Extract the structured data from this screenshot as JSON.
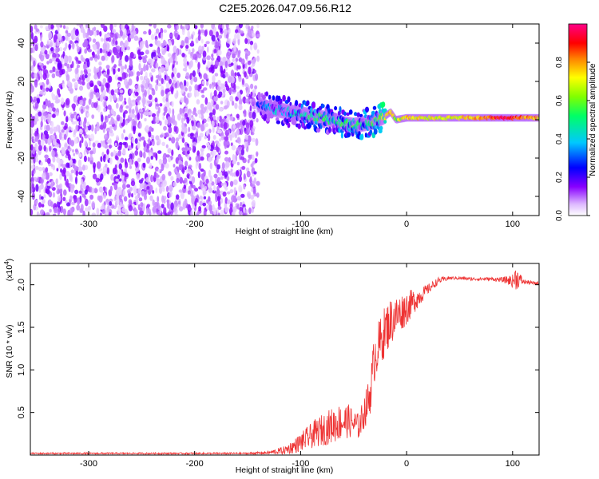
{
  "title": "C2E5.2026.047.09.56.R12",
  "colorbar": {
    "label": "Normalized spectral amplitude",
    "ticks": [
      "0.0",
      "0.2",
      "0.4",
      "0.6",
      "0.8"
    ],
    "tick_values": [
      0.0,
      0.2,
      0.4,
      0.6,
      0.8
    ],
    "range": [
      0,
      1
    ],
    "colormap": [
      "#ffffff",
      "#8800ff",
      "#0000ff",
      "#00e0ff",
      "#00ff00",
      "#ffff00",
      "#ff8000",
      "#ff0000",
      "#ff0080"
    ]
  },
  "chart_data": [
    {
      "type": "heatmap",
      "name": "spectrogram",
      "xlabel": "Height of straight line (km)",
      "ylabel": "Frequency (Hz)",
      "xlim": [
        -355,
        125
      ],
      "ylim": [
        -50,
        50
      ],
      "xticks": [
        -300,
        -200,
        -100,
        0,
        100
      ],
      "xtick_labels": [
        "-300",
        "-200",
        "-100",
        "0",
        "100"
      ],
      "yticks": [
        -40,
        -20,
        0,
        20,
        40
      ],
      "ytick_labels": [
        "-40",
        "-20",
        "0",
        "20",
        "40"
      ],
      "noise_region_x": [
        -355,
        -140
      ],
      "signal_trace": {
        "x": [
          -140,
          -130,
          -120,
          -110,
          -100,
          -90,
          -80,
          -70,
          -60,
          -50,
          -40,
          -30,
          -20,
          -15,
          -10,
          0,
          20,
          40,
          60,
          80,
          90,
          100,
          110,
          125
        ],
        "freq_hz": [
          8,
          6,
          5,
          4,
          3,
          2,
          1,
          0,
          -2,
          -3,
          -2,
          -1,
          2,
          4,
          0,
          1,
          1,
          1,
          1,
          1,
          1,
          1,
          1,
          1
        ],
        "amplitude": [
          0.3,
          0.35,
          0.4,
          0.4,
          0.45,
          0.5,
          0.5,
          0.45,
          0.5,
          0.55,
          0.5,
          0.55,
          0.7,
          0.8,
          0.6,
          0.75,
          0.7,
          0.7,
          0.75,
          0.85,
          0.95,
          0.9,
          0.8,
          0.75
        ]
      }
    },
    {
      "type": "line",
      "name": "snr",
      "xlabel": "Height of straight line (km)",
      "ylabel": "SNR (10 * v/v)",
      "y_scale_label": "(x10",
      "y_scale_exponent": "4",
      "y_scale_suffix": ")",
      "xlim": [
        -355,
        125
      ],
      "ylim": [
        0,
        2.25
      ],
      "xticks": [
        -300,
        -200,
        -100,
        0,
        100
      ],
      "xtick_labels": [
        "-300",
        "-200",
        "-100",
        "0",
        "100"
      ],
      "yticks": [
        0.5,
        1.0,
        1.5,
        2.0
      ],
      "ytick_labels": [
        "0.5",
        "1.0",
        "1.5",
        "2.0"
      ],
      "color": "#ee3333",
      "series": [
        {
          "name": "SNR",
          "x": [
            -355,
            -300,
            -250,
            -200,
            -150,
            -130,
            -115,
            -105,
            -95,
            -85,
            -75,
            -65,
            -55,
            -45,
            -35,
            -30,
            -25,
            -20,
            -15,
            -10,
            -5,
            0,
            10,
            20,
            30,
            40,
            50,
            60,
            70,
            80,
            90,
            95,
            100,
            103,
            110,
            120,
            125
          ],
          "y": [
            0.02,
            0.02,
            0.02,
            0.02,
            0.02,
            0.03,
            0.06,
            0.12,
            0.2,
            0.28,
            0.34,
            0.4,
            0.42,
            0.35,
            0.7,
            1.2,
            1.35,
            1.5,
            1.6,
            1.65,
            1.7,
            1.75,
            1.85,
            1.95,
            2.05,
            2.08,
            2.08,
            2.07,
            2.07,
            2.07,
            2.06,
            2.06,
            2.05,
            2.1,
            2.04,
            2.02,
            2.02
          ],
          "noise": [
            0.01,
            0.01,
            0.01,
            0.01,
            0.01,
            0.02,
            0.05,
            0.09,
            0.13,
            0.17,
            0.2,
            0.22,
            0.2,
            0.15,
            0.25,
            0.3,
            0.3,
            0.3,
            0.28,
            0.25,
            0.22,
            0.2,
            0.12,
            0.06,
            0.04,
            0.02,
            0.02,
            0.02,
            0.02,
            0.02,
            0.03,
            0.05,
            0.08,
            0.15,
            0.03,
            0.02,
            0.02
          ]
        }
      ]
    }
  ]
}
